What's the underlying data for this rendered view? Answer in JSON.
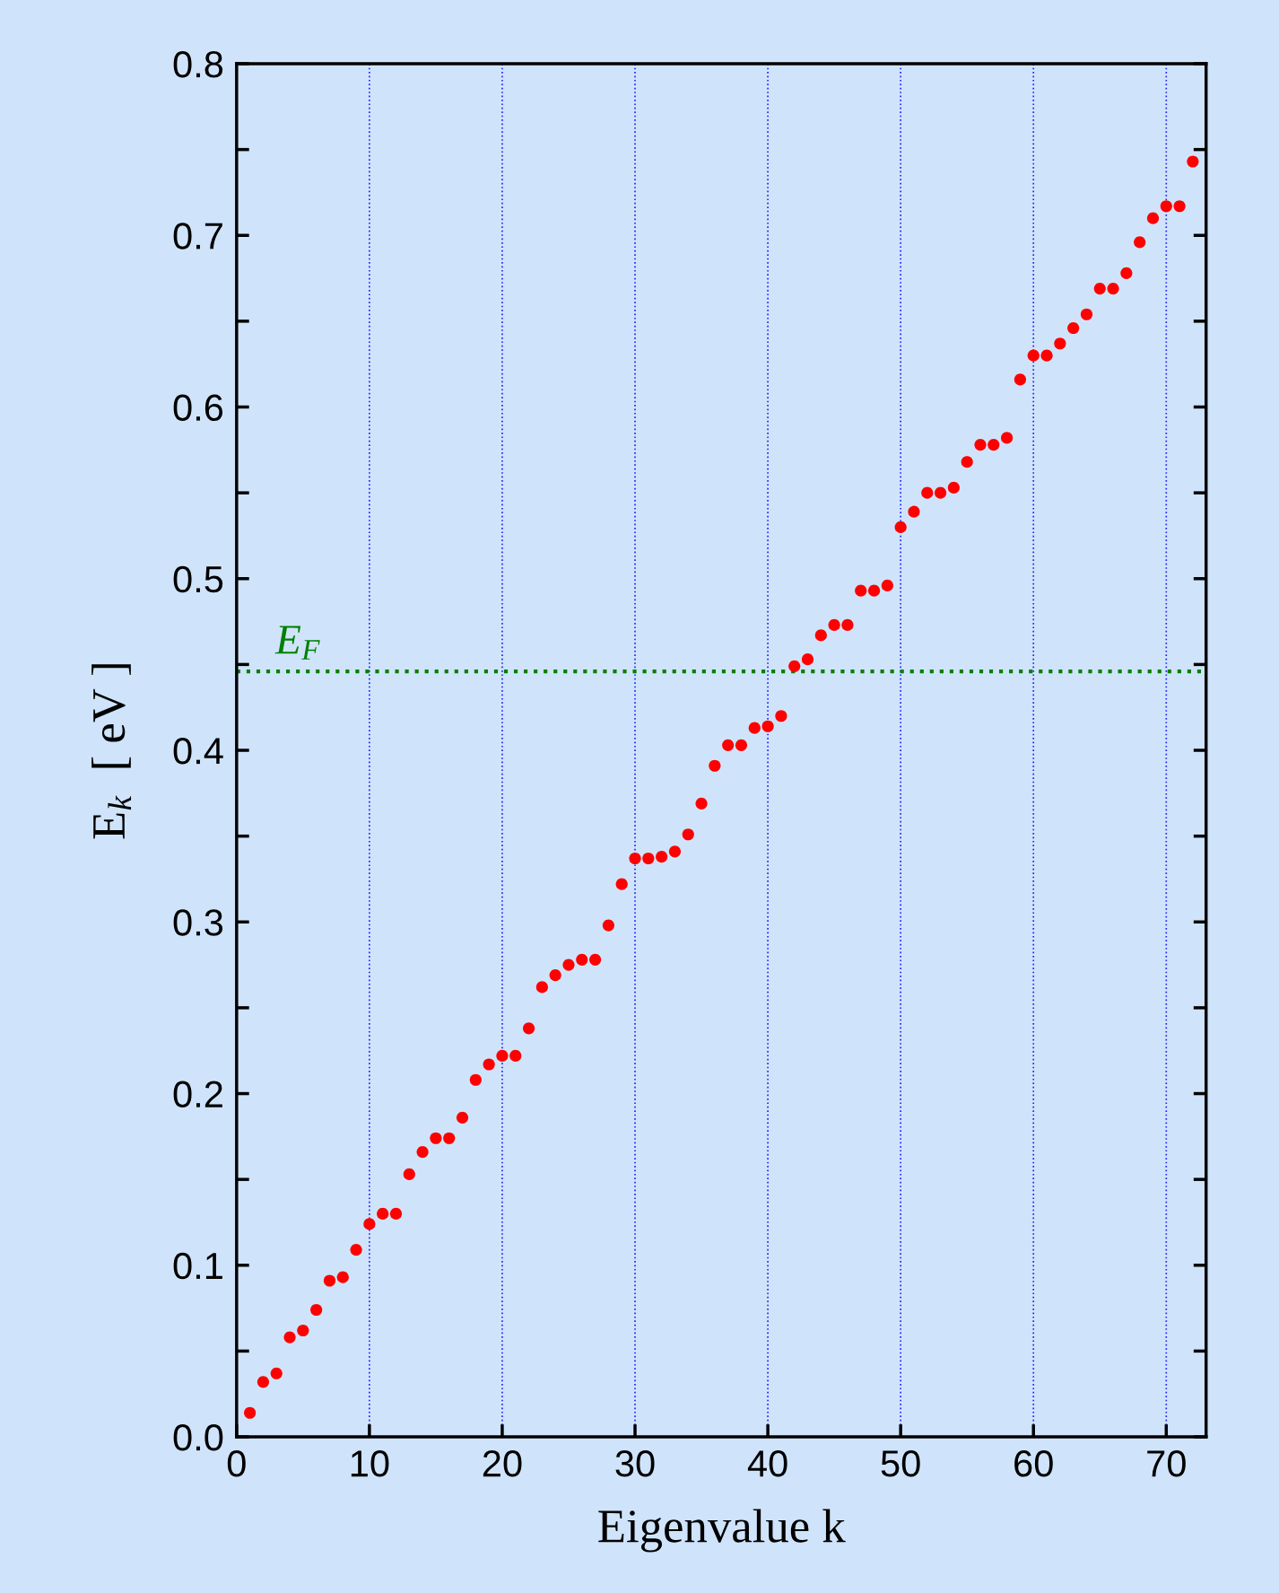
{
  "chart_data": {
    "type": "scatter",
    "xlabel": "Eigenvalue k",
    "ylabel": "E$_{k}$  [ eV ]",
    "x": [
      1,
      2,
      3,
      4,
      5,
      6,
      7,
      8,
      9,
      10,
      11,
      12,
      13,
      14,
      15,
      16,
      17,
      18,
      19,
      20,
      21,
      22,
      23,
      24,
      25,
      26,
      27,
      28,
      29,
      30,
      31,
      32,
      33,
      34,
      35,
      36,
      37,
      38,
      39,
      40,
      41,
      42,
      43,
      44,
      45,
      46,
      47,
      48,
      49,
      50,
      51,
      52,
      53,
      54,
      55,
      56,
      57,
      58,
      59,
      60,
      61,
      62,
      63,
      64,
      65,
      66,
      67,
      68,
      69,
      70,
      71,
      72
    ],
    "series": [
      {
        "color": "#ff0000",
        "values": [
          0.014,
          0.032,
          0.037,
          0.058,
          0.062,
          0.074,
          0.091,
          0.093,
          0.109,
          0.124,
          0.13,
          0.13,
          0.153,
          0.166,
          0.174,
          0.174,
          0.186,
          0.208,
          0.217,
          0.222,
          0.222,
          0.238,
          0.262,
          0.269,
          0.275,
          0.278,
          0.278,
          0.298,
          0.322,
          0.337,
          0.337,
          0.338,
          0.341,
          0.351,
          0.369,
          0.391,
          0.403,
          0.403,
          0.413,
          0.414,
          0.42,
          0.449,
          0.453,
          0.467,
          0.473,
          0.473,
          0.493,
          0.493,
          0.496,
          0.53,
          0.539,
          0.55,
          0.55,
          0.553,
          0.568,
          0.578,
          0.578,
          0.582,
          0.616,
          0.63,
          0.63,
          0.637,
          0.646,
          0.654,
          0.669,
          0.669,
          0.678,
          0.696,
          0.71,
          0.717,
          0.717,
          0.743
        ]
      }
    ],
    "xlim": [
      0,
      73
    ],
    "xticks": [
      0,
      10,
      20,
      30,
      40,
      50,
      60,
      70
    ],
    "ylim": [
      0,
      0.8
    ],
    "yticks": [
      {
        "value": 0,
        "label": "0.0"
      },
      {
        "value": 0.05,
        "label": null
      },
      0.1,
      {
        "value": 0.15,
        "label": null
      },
      0.2,
      {
        "value": 0.25,
        "label": null
      },
      0.3,
      {
        "value": 0.35,
        "label": null
      },
      0.4,
      {
        "value": 0.45,
        "label": null
      },
      0.5,
      {
        "value": 0.55,
        "label": null
      },
      0.6,
      {
        "value": 0.65,
        "label": null
      },
      0.7,
      {
        "value": 0.75,
        "label": null
      },
      0.8
    ],
    "ref_lines": [
      {
        "axis": "y",
        "value": 0.446,
        "label": "E$_{F}$",
        "color": "#008000",
        "line_style": "dotted"
      }
    ],
    "grid": "x",
    "marker": "circle"
  }
}
